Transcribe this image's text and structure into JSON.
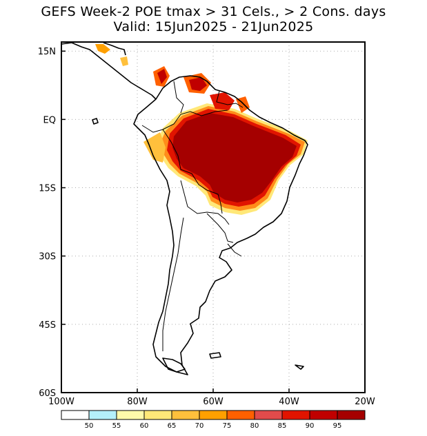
{
  "title": {
    "line1": "GEFS Week-2 POE tmax > 31 Cels., > 2 Cons. days",
    "line2": "Valid: 15Jun2025 - 21Jun2025"
  },
  "map": {
    "region": "South America",
    "lon_range": [
      -100,
      -20
    ],
    "lat_range": [
      -60,
      17
    ],
    "x_ticks": [
      {
        "value": -100,
        "label": "100W"
      },
      {
        "value": -80,
        "label": "80W"
      },
      {
        "value": -60,
        "label": "60W"
      },
      {
        "value": -40,
        "label": "40W"
      },
      {
        "value": -20,
        "label": "20W"
      }
    ],
    "y_ticks": [
      {
        "value": 15,
        "label": "15N"
      },
      {
        "value": 0,
        "label": "EQ"
      },
      {
        "value": -15,
        "label": "15S"
      },
      {
        "value": -30,
        "label": "30S"
      },
      {
        "value": -45,
        "label": "45S"
      },
      {
        "value": -60,
        "label": "60S"
      }
    ],
    "grid": "dotted"
  },
  "colorbar": {
    "labels": [
      "50",
      "55",
      "60",
      "65",
      "70",
      "75",
      "80",
      "85",
      "90",
      "95"
    ],
    "colors": [
      "#ffffff",
      "#b4f0fa",
      "#fffaaa",
      "#ffe878",
      "#ffc03c",
      "#ffa000",
      "#ff6000",
      "#e14b4b",
      "#e11400",
      "#c00000",
      "#a50000"
    ]
  }
}
